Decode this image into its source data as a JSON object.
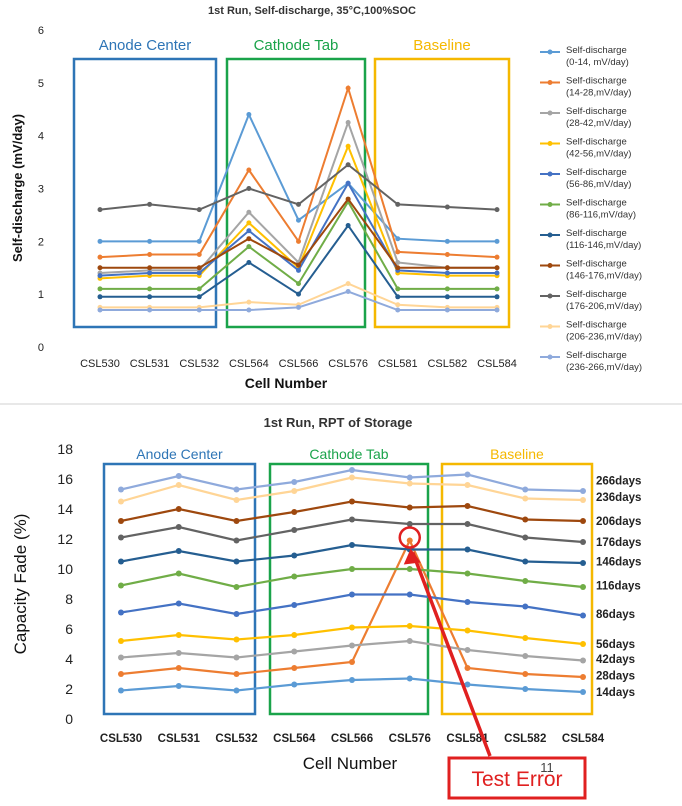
{
  "slide_number": "11",
  "annotation": {
    "label": "Test Error",
    "color": "#e02020"
  },
  "chart_data": [
    {
      "type": "line",
      "title": "1st Run, Self-discharge, 35°C,100%SOC",
      "xlabel": "Cell Number",
      "ylabel": "Self-discharge (mV/day)",
      "ylim": [
        0,
        6
      ],
      "yticks": [
        "0",
        "1",
        "2",
        "3",
        "4",
        "5",
        "6"
      ],
      "legend_position": "right",
      "categories": [
        "CSL530",
        "CSL531",
        "CSL532",
        "CSL564",
        "CSL566",
        "CSL576",
        "CSL581",
        "CSL582",
        "CSL584"
      ],
      "groups": [
        {
          "label": "Anode Center",
          "color": "#2e75b6",
          "from": 0,
          "to": 2
        },
        {
          "label": "Cathode Tab",
          "color": "#1aa34a",
          "from": 3,
          "to": 5
        },
        {
          "label": "Baseline",
          "color": "#f5b800",
          "from": 6,
          "to": 8
        }
      ],
      "series": [
        {
          "name": "Self-discharge (0-14, mV/day)",
          "color": "#5b9bd5",
          "values": [
            2.0,
            2.0,
            2.0,
            4.4,
            2.4,
            3.1,
            2.05,
            2.0,
            2.0
          ]
        },
        {
          "name": "Self-discharge (14-28,mV/day)",
          "color": "#ed7d31",
          "values": [
            1.7,
            1.75,
            1.75,
            3.35,
            2.0,
            4.9,
            1.8,
            1.75,
            1.7
          ]
        },
        {
          "name": "Self-discharge (28-42,mV/day)",
          "color": "#a5a5a5",
          "values": [
            1.4,
            1.45,
            1.45,
            2.55,
            1.6,
            4.25,
            1.6,
            1.5,
            1.5
          ]
        },
        {
          "name": "Self-discharge (42-56,mV/day)",
          "color": "#ffc000",
          "values": [
            1.3,
            1.35,
            1.35,
            2.35,
            1.5,
            3.8,
            1.4,
            1.35,
            1.35
          ]
        },
        {
          "name": "Self-discharge (56-86,mV/day)",
          "color": "#4472c4",
          "values": [
            1.35,
            1.4,
            1.4,
            2.2,
            1.45,
            3.1,
            1.45,
            1.4,
            1.4
          ]
        },
        {
          "name": "Self-discharge (86-116,mV/day)",
          "color": "#70ad47",
          "values": [
            1.1,
            1.1,
            1.1,
            1.9,
            1.2,
            2.75,
            1.1,
            1.1,
            1.1
          ]
        },
        {
          "name": "Self-discharge (116-146,mV/day)",
          "color": "#255e91",
          "values": [
            0.95,
            0.95,
            0.95,
            1.6,
            1.0,
            2.3,
            0.95,
            0.95,
            0.95
          ]
        },
        {
          "name": "Self-discharge (146-176,mV/day)",
          "color": "#9e480e",
          "values": [
            1.5,
            1.5,
            1.5,
            2.05,
            1.55,
            2.8,
            1.5,
            1.5,
            1.5
          ]
        },
        {
          "name": "Self-discharge (176-206,mV/day)",
          "color": "#636363",
          "values": [
            2.6,
            2.7,
            2.6,
            3.0,
            2.7,
            3.45,
            2.7,
            2.65,
            2.6
          ]
        },
        {
          "name": "Self-discharge (206-236,mV/day)",
          "color": "#ffd596",
          "values": [
            0.75,
            0.75,
            0.75,
            0.85,
            0.8,
            1.2,
            0.8,
            0.75,
            0.75
          ]
        },
        {
          "name": "Self-discharge (236-266,mV/day)",
          "color": "#8faadc",
          "values": [
            0.7,
            0.7,
            0.7,
            0.7,
            0.75,
            1.05,
            0.7,
            0.7,
            0.7
          ]
        }
      ]
    },
    {
      "type": "line",
      "title": "1st Run, RPT of Storage",
      "xlabel": "Cell Number",
      "ylabel": "Capacity Fade (%)",
      "ylim": [
        0,
        18
      ],
      "yticks": [
        "0",
        "2",
        "4",
        "6",
        "8",
        "10",
        "12",
        "14",
        "16",
        "18"
      ],
      "legend_position": "right-inline",
      "categories": [
        "CSL530",
        "CSL531",
        "CSL532",
        "CSL564",
        "CSL566",
        "CSL576",
        "CSL581",
        "CSL582",
        "CSL584"
      ],
      "groups": [
        {
          "label": "Anode Center",
          "color": "#2e75b6",
          "from": 0,
          "to": 2
        },
        {
          "label": "Cathode Tab",
          "color": "#1aa34a",
          "from": 3,
          "to": 5
        },
        {
          "label": "Baseline",
          "color": "#f5b800",
          "from": 6,
          "to": 8
        }
      ],
      "series": [
        {
          "name": "14days",
          "color": "#5b9bd5",
          "values": [
            1.9,
            2.2,
            1.9,
            2.3,
            2.6,
            2.7,
            2.3,
            2.0,
            1.8
          ]
        },
        {
          "name": "28days",
          "color": "#ed7d31",
          "values": [
            3.0,
            3.4,
            3.0,
            3.4,
            3.8,
            11.9,
            3.4,
            3.0,
            2.8
          ]
        },
        {
          "name": "42days",
          "color": "#a5a5a5",
          "values": [
            4.1,
            4.4,
            4.1,
            4.5,
            4.9,
            5.2,
            4.6,
            4.2,
            3.9
          ]
        },
        {
          "name": "56days",
          "color": "#ffc000",
          "values": [
            5.2,
            5.6,
            5.3,
            5.6,
            6.1,
            6.2,
            5.9,
            5.4,
            5.0
          ]
        },
        {
          "name": "86days",
          "color": "#4472c4",
          "values": [
            7.1,
            7.7,
            7.0,
            7.6,
            8.3,
            8.3,
            7.8,
            7.5,
            6.9
          ]
        },
        {
          "name": "116days",
          "color": "#70ad47",
          "values": [
            8.9,
            9.7,
            8.8,
            9.5,
            10.0,
            10.0,
            9.7,
            9.2,
            8.8
          ]
        },
        {
          "name": "146days",
          "color": "#255e91",
          "values": [
            10.5,
            11.2,
            10.5,
            10.9,
            11.6,
            11.3,
            11.3,
            10.5,
            10.4
          ]
        },
        {
          "name": "176days",
          "color": "#636363",
          "values": [
            12.1,
            12.8,
            11.9,
            12.6,
            13.3,
            13.0,
            13.0,
            12.1,
            11.8
          ]
        },
        {
          "name": "206days",
          "color": "#9e480e",
          "values": [
            13.2,
            14.0,
            13.2,
            13.8,
            14.5,
            14.1,
            14.2,
            13.3,
            13.2
          ]
        },
        {
          "name": "236days",
          "color": "#ffd596",
          "values": [
            14.5,
            15.6,
            14.6,
            15.2,
            16.1,
            15.7,
            15.6,
            14.7,
            14.6
          ]
        },
        {
          "name": "266days",
          "color": "#8faadc",
          "values": [
            15.3,
            16.2,
            15.3,
            15.8,
            16.6,
            16.1,
            16.3,
            15.3,
            15.2
          ]
        }
      ],
      "inline_label_rows": [
        {
          "series": "266days",
          "y": 15.9
        },
        {
          "series": "236days",
          "y": 14.8
        },
        {
          "series": "206days",
          "y": 13.2
        },
        {
          "series": "176days",
          "y": 11.8
        },
        {
          "series": "146days",
          "y": 10.5
        },
        {
          "series": "116days",
          "y": 8.9
        },
        {
          "series": "86days",
          "y": 7.0
        },
        {
          "series": "56days",
          "y": 5.0
        },
        {
          "series": "42days",
          "y": 4.0
        },
        {
          "series": "28days",
          "y": 2.9
        },
        {
          "series": "14days",
          "y": 1.8
        }
      ],
      "error_point": {
        "series": "28days",
        "category": "CSL576"
      }
    }
  ]
}
